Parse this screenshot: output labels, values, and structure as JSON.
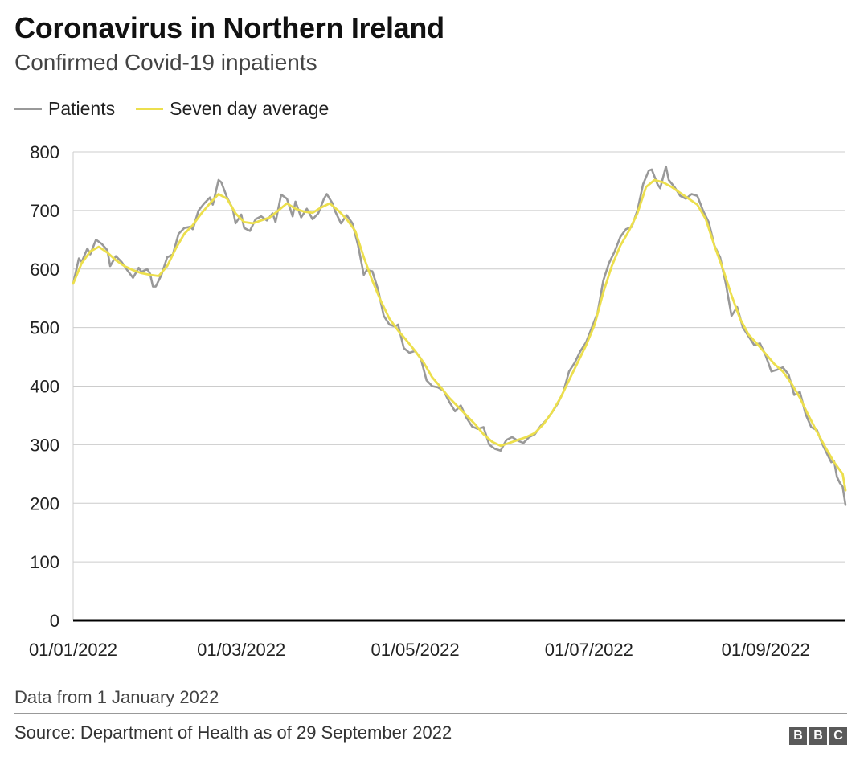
{
  "title": "Coronavirus in Northern Ireland",
  "subtitle": "Confirmed Covid-19 inpatients",
  "footnote": "Data from 1 January 2022",
  "source": "Source: Department of Health as of 29 September 2022",
  "logo": [
    "B",
    "B",
    "C"
  ],
  "colors": {
    "patients": "#999999",
    "average": "#ecdf4d",
    "grid": "#cccccc",
    "axis": "#000000"
  },
  "chart_data": {
    "type": "line",
    "title": "Coronavirus in Northern Ireland",
    "subtitle": "Confirmed Covid-19 inpatients",
    "xlabel": "",
    "ylabel": "",
    "ylim": [
      0,
      800
    ],
    "yticks": [
      0,
      100,
      200,
      300,
      400,
      500,
      600,
      700,
      800
    ],
    "xlim": [
      "2022-01-01",
      "2022-09-29"
    ],
    "xtick_labels": [
      "01/01/2022",
      "01/03/2022",
      "01/05/2022",
      "01/07/2022",
      "01/09/2022"
    ],
    "xtick_dates": [
      "2022-01-01",
      "2022-03-01",
      "2022-05-01",
      "2022-07-01",
      "2022-09-01"
    ],
    "grid": true,
    "legend_position": "top-left",
    "series": [
      {
        "name": "Patients",
        "color": "#999999",
        "points": [
          [
            "2022-01-01",
            575
          ],
          [
            "2022-01-03",
            618
          ],
          [
            "2022-01-04",
            612
          ],
          [
            "2022-01-06",
            635
          ],
          [
            "2022-01-07",
            625
          ],
          [
            "2022-01-09",
            650
          ],
          [
            "2022-01-11",
            643
          ],
          [
            "2022-01-13",
            632
          ],
          [
            "2022-01-14",
            605
          ],
          [
            "2022-01-16",
            622
          ],
          [
            "2022-01-18",
            612
          ],
          [
            "2022-01-20",
            598
          ],
          [
            "2022-01-22",
            585
          ],
          [
            "2022-01-24",
            602
          ],
          [
            "2022-01-25",
            595
          ],
          [
            "2022-01-27",
            600
          ],
          [
            "2022-01-28",
            592
          ],
          [
            "2022-01-29",
            570
          ],
          [
            "2022-01-30",
            570
          ],
          [
            "2022-02-01",
            590
          ],
          [
            "2022-02-03",
            620
          ],
          [
            "2022-02-05",
            625
          ],
          [
            "2022-02-07",
            660
          ],
          [
            "2022-02-09",
            670
          ],
          [
            "2022-02-11",
            672
          ],
          [
            "2022-02-12",
            668
          ],
          [
            "2022-02-14",
            700
          ],
          [
            "2022-02-16",
            712
          ],
          [
            "2022-02-18",
            722
          ],
          [
            "2022-02-19",
            710
          ],
          [
            "2022-02-21",
            752
          ],
          [
            "2022-02-22",
            748
          ],
          [
            "2022-02-24",
            722
          ],
          [
            "2022-02-26",
            703
          ],
          [
            "2022-02-27",
            678
          ],
          [
            "2022-03-01",
            693
          ],
          [
            "2022-03-02",
            670
          ],
          [
            "2022-03-04",
            665
          ],
          [
            "2022-03-06",
            685
          ],
          [
            "2022-03-08",
            690
          ],
          [
            "2022-03-10",
            683
          ],
          [
            "2022-03-12",
            695
          ],
          [
            "2022-03-13",
            680
          ],
          [
            "2022-03-15",
            727
          ],
          [
            "2022-03-17",
            720
          ],
          [
            "2022-03-19",
            690
          ],
          [
            "2022-03-20",
            715
          ],
          [
            "2022-03-22",
            688
          ],
          [
            "2022-03-24",
            703
          ],
          [
            "2022-03-26",
            685
          ],
          [
            "2022-03-28",
            695
          ],
          [
            "2022-03-30",
            720
          ],
          [
            "2022-03-31",
            728
          ],
          [
            "2022-04-02",
            712
          ],
          [
            "2022-04-03",
            698
          ],
          [
            "2022-04-05",
            678
          ],
          [
            "2022-04-07",
            692
          ],
          [
            "2022-04-09",
            678
          ],
          [
            "2022-04-11",
            640
          ],
          [
            "2022-04-13",
            590
          ],
          [
            "2022-04-14",
            598
          ],
          [
            "2022-04-16",
            596
          ],
          [
            "2022-04-18",
            565
          ],
          [
            "2022-04-20",
            520
          ],
          [
            "2022-04-22",
            505
          ],
          [
            "2022-04-24",
            502
          ],
          [
            "2022-04-25",
            505
          ],
          [
            "2022-04-27",
            465
          ],
          [
            "2022-04-29",
            457
          ],
          [
            "2022-05-01",
            460
          ],
          [
            "2022-05-03",
            447
          ],
          [
            "2022-05-05",
            410
          ],
          [
            "2022-05-07",
            400
          ],
          [
            "2022-05-09",
            398
          ],
          [
            "2022-05-11",
            392
          ],
          [
            "2022-05-13",
            373
          ],
          [
            "2022-05-15",
            357
          ],
          [
            "2022-05-17",
            367
          ],
          [
            "2022-05-19",
            346
          ],
          [
            "2022-05-21",
            331
          ],
          [
            "2022-05-23",
            327
          ],
          [
            "2022-05-25",
            330
          ],
          [
            "2022-05-27",
            300
          ],
          [
            "2022-05-29",
            293
          ],
          [
            "2022-05-31",
            290
          ],
          [
            "2022-06-02",
            308
          ],
          [
            "2022-06-04",
            313
          ],
          [
            "2022-06-06",
            307
          ],
          [
            "2022-06-08",
            303
          ],
          [
            "2022-06-10",
            313
          ],
          [
            "2022-06-12",
            318
          ],
          [
            "2022-06-14",
            332
          ],
          [
            "2022-06-16",
            342
          ],
          [
            "2022-06-18",
            355
          ],
          [
            "2022-06-20",
            370
          ],
          [
            "2022-06-22",
            390
          ],
          [
            "2022-06-24",
            425
          ],
          [
            "2022-06-26",
            440
          ],
          [
            "2022-06-28",
            460
          ],
          [
            "2022-06-30",
            475
          ],
          [
            "2022-07-02",
            500
          ],
          [
            "2022-07-04",
            525
          ],
          [
            "2022-07-06",
            580
          ],
          [
            "2022-07-08",
            610
          ],
          [
            "2022-07-10",
            630
          ],
          [
            "2022-07-12",
            655
          ],
          [
            "2022-07-14",
            668
          ],
          [
            "2022-07-16",
            672
          ],
          [
            "2022-07-18",
            700
          ],
          [
            "2022-07-20",
            745
          ],
          [
            "2022-07-22",
            768
          ],
          [
            "2022-07-23",
            770
          ],
          [
            "2022-07-25",
            745
          ],
          [
            "2022-07-26",
            738
          ],
          [
            "2022-07-28",
            775
          ],
          [
            "2022-07-29",
            752
          ],
          [
            "2022-07-31",
            740
          ],
          [
            "2022-08-02",
            725
          ],
          [
            "2022-08-04",
            720
          ],
          [
            "2022-08-06",
            728
          ],
          [
            "2022-08-08",
            725
          ],
          [
            "2022-08-10",
            700
          ],
          [
            "2022-08-12",
            680
          ],
          [
            "2022-08-14",
            640
          ],
          [
            "2022-08-16",
            620
          ],
          [
            "2022-08-18",
            575
          ],
          [
            "2022-08-20",
            520
          ],
          [
            "2022-08-22",
            535
          ],
          [
            "2022-08-24",
            500
          ],
          [
            "2022-08-26",
            485
          ],
          [
            "2022-08-28",
            470
          ],
          [
            "2022-08-30",
            473
          ],
          [
            "2022-09-01",
            452
          ],
          [
            "2022-09-03",
            425
          ],
          [
            "2022-09-05",
            428
          ],
          [
            "2022-09-07",
            432
          ],
          [
            "2022-09-09",
            420
          ],
          [
            "2022-09-11",
            385
          ],
          [
            "2022-09-13",
            390
          ],
          [
            "2022-09-15",
            352
          ],
          [
            "2022-09-17",
            330
          ],
          [
            "2022-09-19",
            325
          ],
          [
            "2022-09-21",
            300
          ],
          [
            "2022-09-23",
            280
          ],
          [
            "2022-09-24",
            270
          ],
          [
            "2022-09-25",
            272
          ],
          [
            "2022-09-26",
            245
          ],
          [
            "2022-09-27",
            235
          ],
          [
            "2022-09-28",
            228
          ],
          [
            "2022-09-29",
            197
          ]
        ]
      },
      {
        "name": "Seven day average",
        "color": "#ecdf4d",
        "points": [
          [
            "2022-01-01",
            575
          ],
          [
            "2022-01-04",
            610
          ],
          [
            "2022-01-07",
            630
          ],
          [
            "2022-01-10",
            638
          ],
          [
            "2022-01-13",
            628
          ],
          [
            "2022-01-16",
            615
          ],
          [
            "2022-01-19",
            605
          ],
          [
            "2022-01-22",
            598
          ],
          [
            "2022-01-25",
            593
          ],
          [
            "2022-01-28",
            590
          ],
          [
            "2022-01-31",
            588
          ],
          [
            "2022-02-03",
            605
          ],
          [
            "2022-02-06",
            635
          ],
          [
            "2022-02-09",
            660
          ],
          [
            "2022-02-12",
            675
          ],
          [
            "2022-02-15",
            695
          ],
          [
            "2022-02-18",
            712
          ],
          [
            "2022-02-21",
            728
          ],
          [
            "2022-02-24",
            720
          ],
          [
            "2022-02-27",
            695
          ],
          [
            "2022-03-02",
            680
          ],
          [
            "2022-03-05",
            678
          ],
          [
            "2022-03-08",
            683
          ],
          [
            "2022-03-11",
            688
          ],
          [
            "2022-03-14",
            700
          ],
          [
            "2022-03-17",
            712
          ],
          [
            "2022-03-20",
            703
          ],
          [
            "2022-03-23",
            698
          ],
          [
            "2022-03-26",
            696
          ],
          [
            "2022-03-29",
            705
          ],
          [
            "2022-04-01",
            712
          ],
          [
            "2022-04-04",
            700
          ],
          [
            "2022-04-07",
            685
          ],
          [
            "2022-04-10",
            665
          ],
          [
            "2022-04-13",
            620
          ],
          [
            "2022-04-16",
            580
          ],
          [
            "2022-04-19",
            545
          ],
          [
            "2022-04-22",
            515
          ],
          [
            "2022-04-25",
            495
          ],
          [
            "2022-04-28",
            478
          ],
          [
            "2022-05-01",
            460
          ],
          [
            "2022-05-04",
            440
          ],
          [
            "2022-05-07",
            415
          ],
          [
            "2022-05-10",
            398
          ],
          [
            "2022-05-13",
            380
          ],
          [
            "2022-05-16",
            365
          ],
          [
            "2022-05-19",
            350
          ],
          [
            "2022-05-22",
            335
          ],
          [
            "2022-05-25",
            318
          ],
          [
            "2022-05-28",
            305
          ],
          [
            "2022-05-31",
            298
          ],
          [
            "2022-06-03",
            303
          ],
          [
            "2022-06-06",
            308
          ],
          [
            "2022-06-09",
            313
          ],
          [
            "2022-06-12",
            320
          ],
          [
            "2022-06-15",
            335
          ],
          [
            "2022-06-18",
            355
          ],
          [
            "2022-06-21",
            380
          ],
          [
            "2022-06-24",
            410
          ],
          [
            "2022-06-27",
            440
          ],
          [
            "2022-06-30",
            470
          ],
          [
            "2022-07-03",
            505
          ],
          [
            "2022-07-06",
            560
          ],
          [
            "2022-07-09",
            605
          ],
          [
            "2022-07-12",
            640
          ],
          [
            "2022-07-15",
            665
          ],
          [
            "2022-07-18",
            695
          ],
          [
            "2022-07-21",
            740
          ],
          [
            "2022-07-24",
            752
          ],
          [
            "2022-07-27",
            748
          ],
          [
            "2022-07-30",
            740
          ],
          [
            "2022-08-02",
            730
          ],
          [
            "2022-08-05",
            720
          ],
          [
            "2022-08-08",
            710
          ],
          [
            "2022-08-11",
            685
          ],
          [
            "2022-08-14",
            640
          ],
          [
            "2022-08-17",
            600
          ],
          [
            "2022-08-20",
            555
          ],
          [
            "2022-08-23",
            515
          ],
          [
            "2022-08-26",
            488
          ],
          [
            "2022-08-29",
            472
          ],
          [
            "2022-09-01",
            455
          ],
          [
            "2022-09-04",
            438
          ],
          [
            "2022-09-07",
            425
          ],
          [
            "2022-09-10",
            405
          ],
          [
            "2022-09-13",
            380
          ],
          [
            "2022-09-16",
            350
          ],
          [
            "2022-09-19",
            322
          ],
          [
            "2022-09-22",
            295
          ],
          [
            "2022-09-25",
            270
          ],
          [
            "2022-09-28",
            250
          ],
          [
            "2022-09-29",
            222
          ]
        ]
      }
    ]
  }
}
